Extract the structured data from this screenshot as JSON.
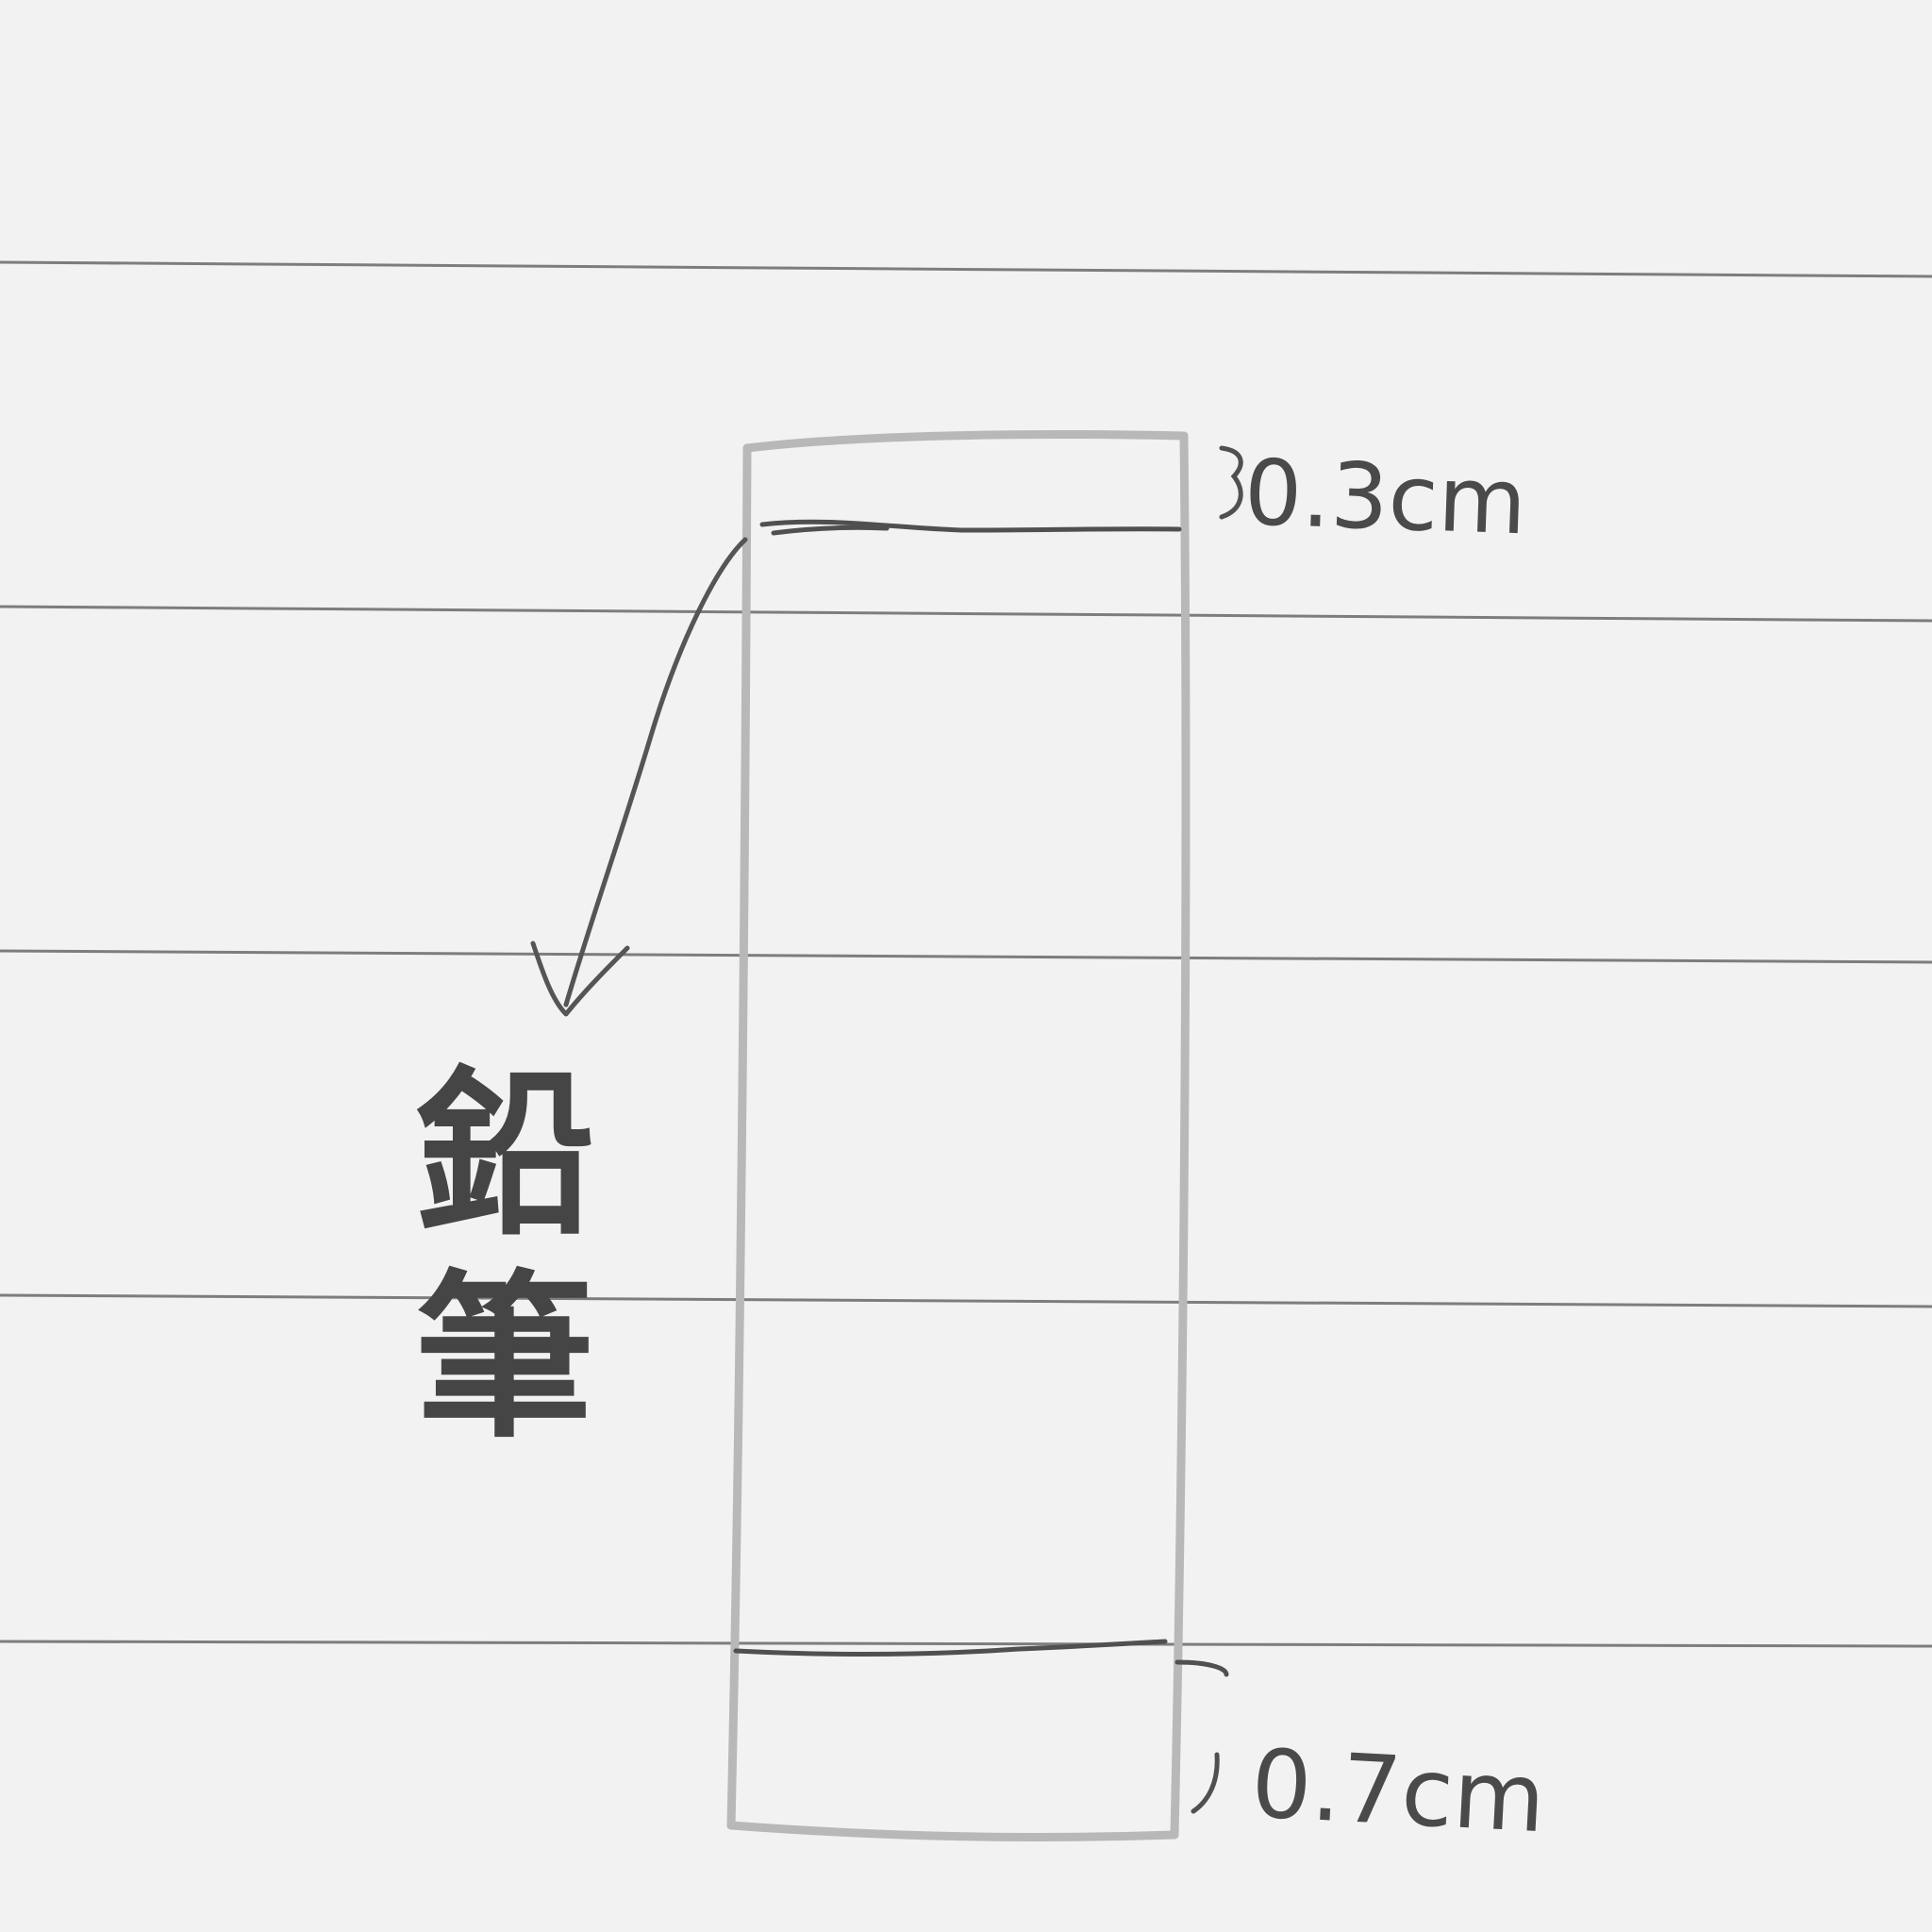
{
  "diagram": {
    "label_top": "0.3cm",
    "label_bottom": "0.7cm",
    "pencil_char_1": "鉛",
    "pencil_char_2": "筆"
  },
  "colors": {
    "paper": "#f2f2f2",
    "ruled_line": "#7a7a7a",
    "pencil_light": "#b5b5b5",
    "pencil_dark": "#4a4a4a"
  }
}
